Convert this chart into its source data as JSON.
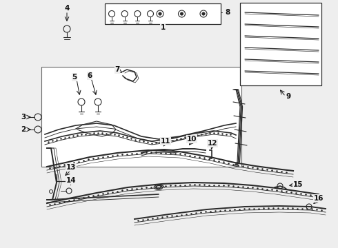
{
  "bg_color": "#eeeeee",
  "line_color": "#2a2a2a",
  "label_color": "#111111",
  "white": "#ffffff",
  "figsize": [
    4.9,
    3.6
  ],
  "dpi": 100
}
